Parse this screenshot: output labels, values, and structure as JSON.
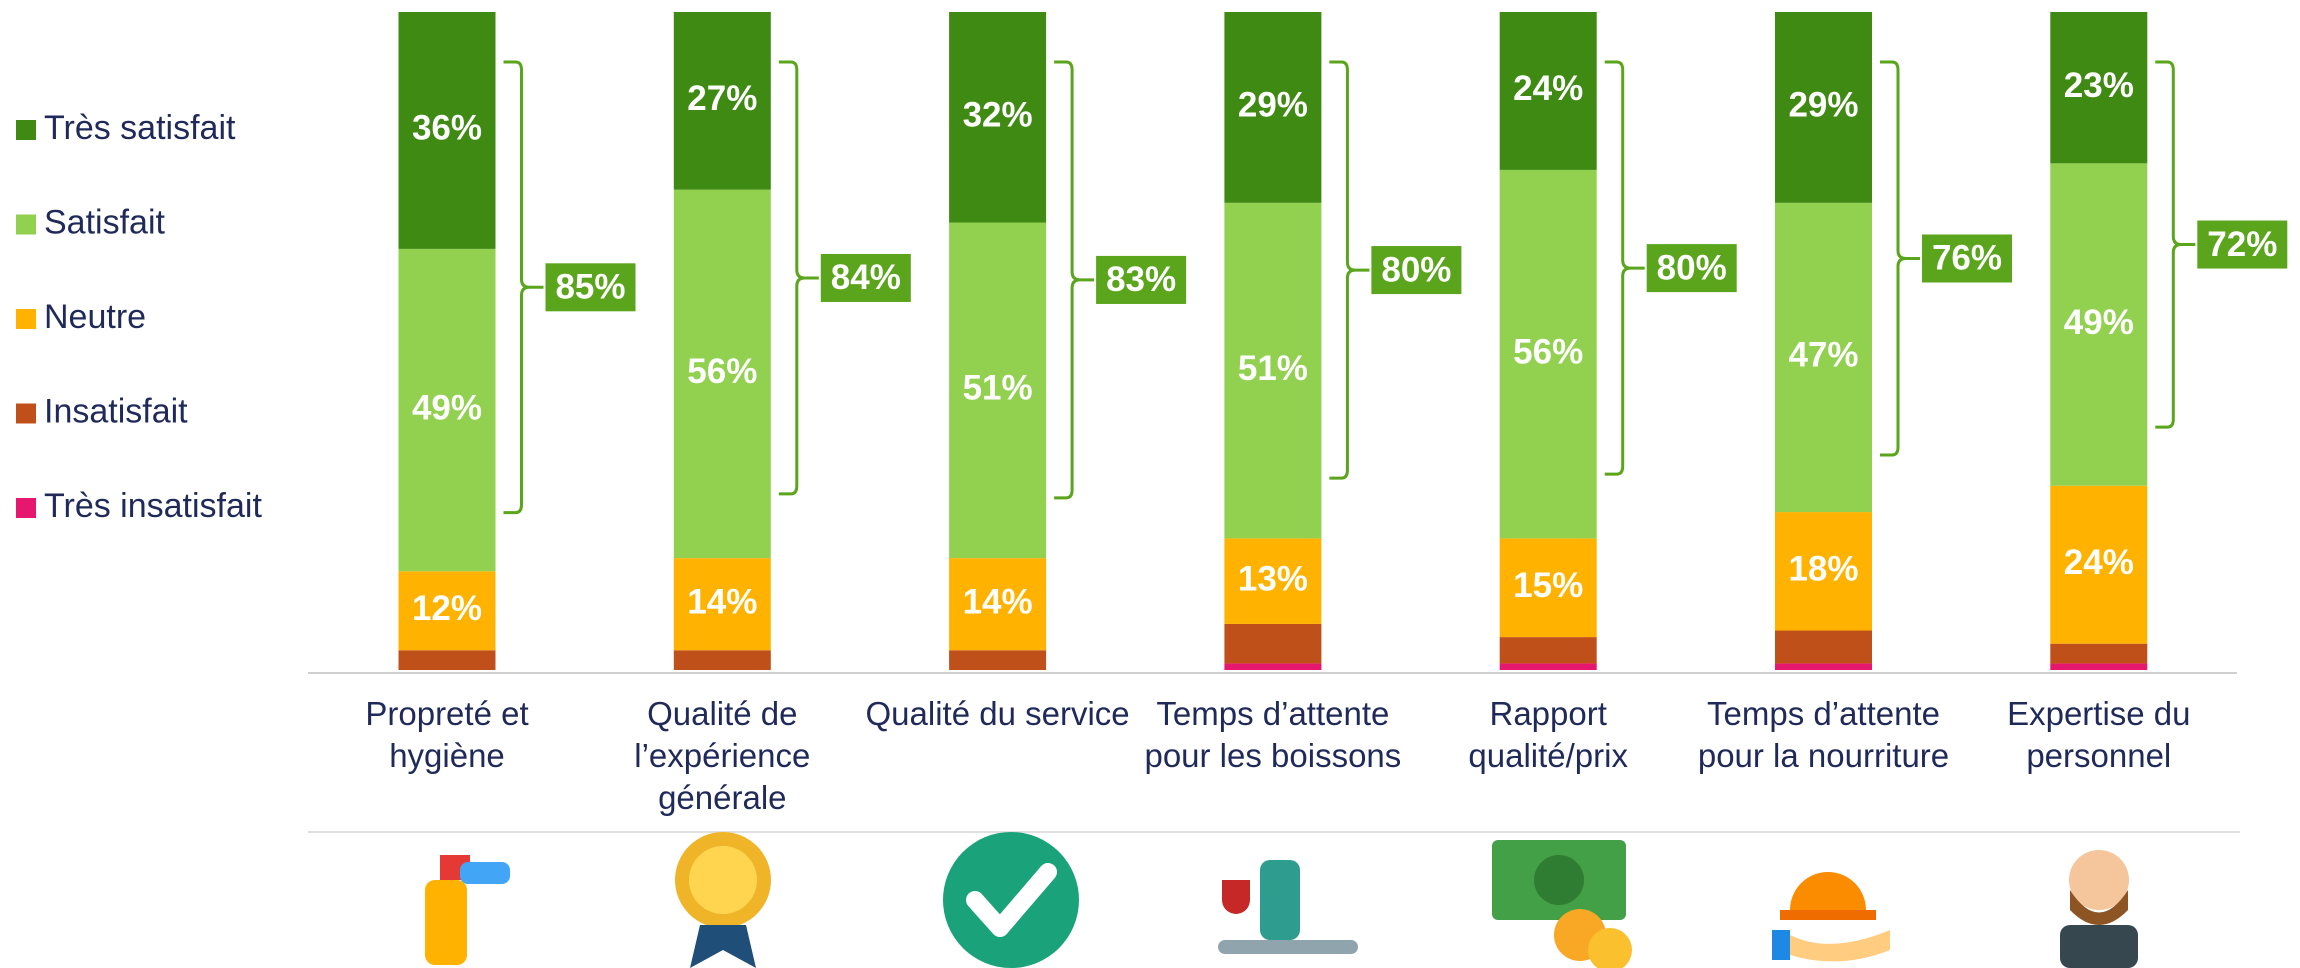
{
  "chart_data": {
    "type": "stacked_bar",
    "categories": [
      "Propreté et hygiène",
      "Qualité de l’expérience générale",
      "Qualité du service",
      "Temps d’attente pour les boissons",
      "Rapport qualité/prix",
      "Temps d’attente pour la nourriture",
      "Expertise du personnel"
    ],
    "series": [
      {
        "name": "Très satisfait",
        "color": "#3f8a12",
        "values": [
          36,
          27,
          32,
          29,
          24,
          29,
          23
        ],
        "value_labels": [
          "36%",
          "27%",
          "32%",
          "29%",
          "24%",
          "29%",
          "23%"
        ]
      },
      {
        "name": "Satisfait",
        "color": "#92d050",
        "values": [
          49,
          56,
          51,
          51,
          56,
          47,
          49
        ],
        "value_labels": [
          "49%",
          "56%",
          "51%",
          "51%",
          "56%",
          "47%",
          "49%"
        ]
      },
      {
        "name": "Neutre",
        "color": "#ffb300",
        "values": [
          12,
          14,
          14,
          13,
          15,
          18,
          24
        ],
        "value_labels": [
          "12%",
          "14%",
          "14%",
          "13%",
          "15%",
          "18%",
          "24%"
        ]
      },
      {
        "name": "Insatisfait",
        "color": "#c0501a",
        "values": [
          3,
          3,
          3,
          6,
          4,
          5,
          3
        ]
      },
      {
        "name": "Très insatisfait",
        "color": "#e5176e",
        "values": [
          0,
          0,
          0,
          1,
          1,
          1,
          1
        ]
      }
    ],
    "totals": {
      "color": "#5aa51b",
      "values": [
        85,
        84,
        83,
        80,
        80,
        76,
        72
      ],
      "value_labels": [
        "85%",
        "84%",
        "83%",
        "80%",
        "80%",
        "76%",
        "72%"
      ]
    },
    "ylim": [
      0,
      100
    ],
    "legend": "left"
  }
}
